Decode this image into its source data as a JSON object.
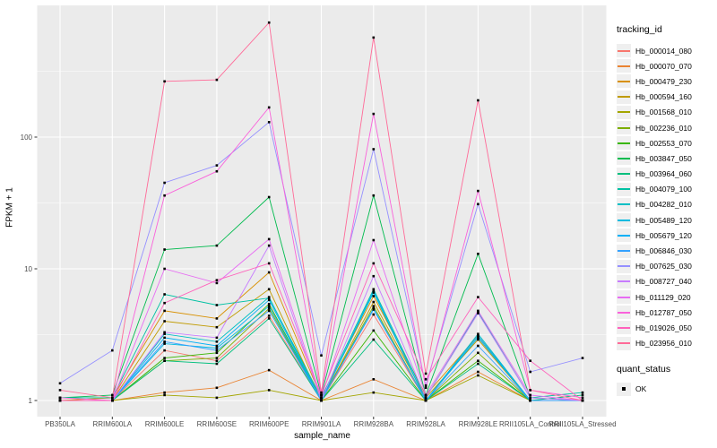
{
  "figure": {
    "bg": "#FFFFFF",
    "panel_bg": "#EBEBEB",
    "grid_color": "#FFFFFF",
    "tick_color": "#333333",
    "tick_label_color": "#4D4D4D",
    "axis_title_color": "#000000",
    "point_color": "#000000",
    "legend_key_bg": "#EFEFEF"
  },
  "chart_data": {
    "type": "line",
    "title": "",
    "xlabel": "sample_name",
    "ylabel": "FPKM + 1",
    "y_scale": "log10",
    "grid": true,
    "legend_position": "right",
    "legend_title": "tracking_id",
    "y_ticks": [
      {
        "label": "1",
        "value": 1
      },
      {
        "label": "10",
        "value": 10
      },
      {
        "label": "100",
        "value": 100
      }
    ],
    "y_minor_values": [
      3.162,
      31.62,
      316.2
    ],
    "ylim": [
      0.93,
      1050
    ],
    "categories": [
      "PB350LA",
      "RRIM600LA",
      "RRIM600LE",
      "RRIM600SE",
      "RRIM600PE",
      "RRIM901LA",
      "RRIM928BA",
      "RRIM928LA",
      "RRIM928LE",
      "RRII105LA_Control",
      "RRII105LA_Stressed"
    ],
    "point_marker": "square",
    "quant_status": {
      "title": "quant_status",
      "items": [
        {
          "label": "OK",
          "marker": "black-square"
        }
      ]
    },
    "series": [
      {
        "name": "Hb_000014_080",
        "color": "#F8766D",
        "values": [
          1.0,
          1.0,
          2.4,
          2.0,
          4.4,
          1.0,
          4.5,
          1.0,
          3.0,
          1.0,
          1.0
        ]
      },
      {
        "name": "Hb_000070_070",
        "color": "#EA8331",
        "values": [
          1.0,
          1.0,
          1.15,
          1.25,
          1.7,
          1.0,
          1.45,
          1.0,
          1.65,
          1.0,
          1.0
        ]
      },
      {
        "name": "Hb_000479_230",
        "color": "#D89000",
        "values": [
          1.0,
          1.05,
          4.8,
          4.2,
          9.4,
          1.05,
          6.2,
          1.1,
          3.1,
          1.0,
          1.0
        ]
      },
      {
        "name": "Hb_000594_160",
        "color": "#C09B00",
        "values": [
          1.0,
          1.0,
          4.0,
          3.6,
          7.0,
          1.0,
          5.6,
          1.05,
          2.9,
          1.0,
          1.0
        ]
      },
      {
        "name": "Hb_001568_010",
        "color": "#A3A500",
        "values": [
          1.0,
          1.0,
          1.1,
          1.05,
          1.2,
          1.0,
          1.15,
          1.0,
          1.55,
          1.0,
          1.0
        ]
      },
      {
        "name": "Hb_002236_010",
        "color": "#7CAE00",
        "values": [
          1.0,
          1.0,
          2.0,
          2.1,
          5.0,
          1.0,
          5.2,
          1.0,
          2.3,
          1.0,
          1.0
        ]
      },
      {
        "name": "Hb_002553_070",
        "color": "#39B600",
        "values": [
          1.0,
          1.0,
          2.1,
          2.3,
          5.4,
          1.0,
          3.4,
          1.0,
          2.0,
          1.0,
          1.0
        ]
      },
      {
        "name": "Hb_003847_050",
        "color": "#00BB4E",
        "values": [
          1.05,
          1.1,
          14.0,
          15.0,
          35.0,
          1.1,
          36.0,
          1.1,
          13.0,
          1.05,
          1.0
        ]
      },
      {
        "name": "Hb_003964_060",
        "color": "#00BF7D",
        "values": [
          1.0,
          1.0,
          2.0,
          1.9,
          4.2,
          1.0,
          2.9,
          1.0,
          1.9,
          1.0,
          1.1
        ]
      },
      {
        "name": "Hb_004079_100",
        "color": "#00C1A3",
        "values": [
          1.05,
          1.05,
          6.4,
          5.3,
          6.0,
          1.05,
          7.0,
          1.05,
          4.7,
          1.05,
          1.15
        ]
      },
      {
        "name": "Hb_004282_010",
        "color": "#00BFC4",
        "values": [
          1.0,
          1.0,
          3.2,
          2.8,
          6.1,
          1.0,
          6.6,
          1.0,
          3.2,
          1.0,
          1.0
        ]
      },
      {
        "name": "Hb_005489_120",
        "color": "#00BAE0",
        "values": [
          1.0,
          1.0,
          2.7,
          2.5,
          5.2,
          1.0,
          5.0,
          1.0,
          3.0,
          1.0,
          1.0
        ]
      },
      {
        "name": "Hb_005679_120",
        "color": "#00B0F6",
        "values": [
          1.0,
          1.0,
          3.0,
          2.6,
          5.8,
          1.0,
          6.8,
          1.0,
          3.1,
          1.0,
          1.0
        ]
      },
      {
        "name": "Hb_006846_030",
        "color": "#35A2FF",
        "values": [
          1.0,
          1.0,
          2.8,
          2.4,
          4.8,
          1.0,
          4.9,
          1.0,
          2.6,
          1.0,
          1.0
        ]
      },
      {
        "name": "Hb_007625_030",
        "color": "#9590FF",
        "values": [
          1.35,
          2.4,
          45.0,
          61.0,
          130.0,
          2.2,
          81.0,
          1.3,
          31.0,
          1.65,
          2.1
        ]
      },
      {
        "name": "Hb_008727_040",
        "color": "#C77CFF",
        "values": [
          1.0,
          1.0,
          3.3,
          3.0,
          15.0,
          1.0,
          8.8,
          1.05,
          4.6,
          1.05,
          1.0
        ]
      },
      {
        "name": "Hb_011129_020",
        "color": "#E76BF3",
        "values": [
          1.0,
          1.0,
          10.0,
          7.8,
          16.8,
          1.05,
          16.5,
          1.1,
          4.8,
          1.1,
          1.0
        ]
      },
      {
        "name": "Hb_012787_050",
        "color": "#FA62DB",
        "values": [
          1.05,
          1.0,
          36.0,
          55.0,
          168.0,
          1.1,
          150.0,
          1.25,
          39.0,
          1.2,
          1.05
        ]
      },
      {
        "name": "Hb_019026_050",
        "color": "#FF62BC",
        "values": [
          1.0,
          1.0,
          5.5,
          8.2,
          11.0,
          1.1,
          11.0,
          1.45,
          6.1,
          2.0,
          1.0
        ]
      },
      {
        "name": "Hb_023956_010",
        "color": "#FF6A98",
        "values": [
          1.2,
          1.05,
          265.0,
          272.0,
          740.0,
          1.15,
          570.0,
          1.6,
          190.0,
          1.2,
          1.0
        ]
      }
    ]
  }
}
